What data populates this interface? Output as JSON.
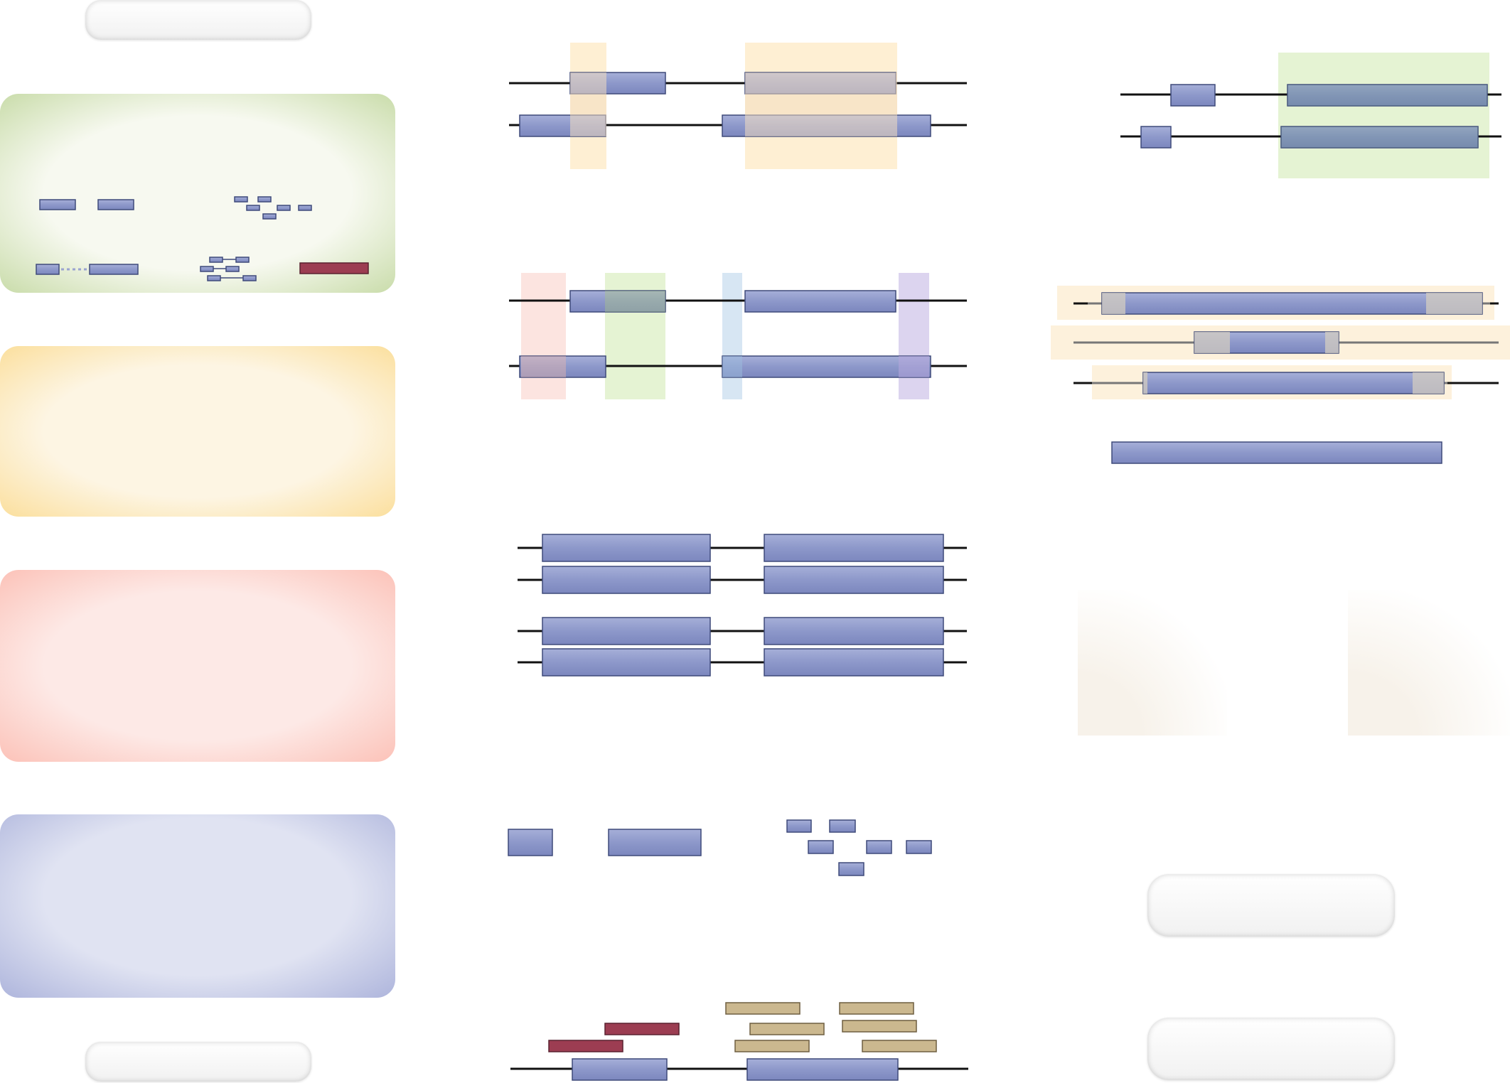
{
  "legend": {
    "pills": [
      "",
      "",
      "",
      ""
    ],
    "panels": [
      {
        "id": "green",
        "label": ""
      },
      {
        "id": "yellow",
        "label": ""
      },
      {
        "id": "red",
        "label": ""
      },
      {
        "id": "blue",
        "label": ""
      }
    ]
  },
  "colors": {
    "exon_fill": "#8f9bcc",
    "exon_stroke": "#3f4a7a",
    "intron": "#111111",
    "feature_red": "#9c3d52",
    "read_tan": "#cbb88f",
    "shade_orange": "#fde9c4",
    "shade_green": "#dff0c8",
    "shade_pink": "#fbd9d3",
    "shade_blue": "#cde0f0",
    "shade_purple": "#d6cdec",
    "panel_green": "#c9dcaa",
    "panel_yellow": "#fbdf9d",
    "panel_red": "#fcc2b8",
    "panel_blue": "#aeb5dc"
  },
  "icons": [
    "gene-model-icon",
    "exon-block-icon",
    "read-fragment-icon"
  ]
}
